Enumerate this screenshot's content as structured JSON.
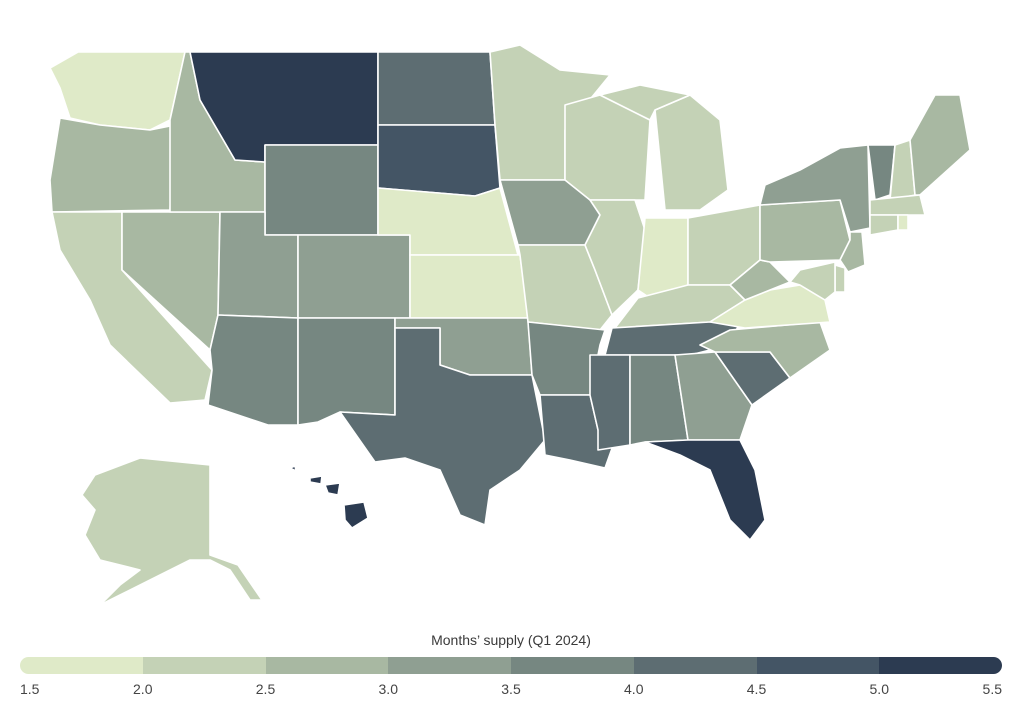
{
  "legend": {
    "title": "Months’ supply (Q1 2024)",
    "ticks": [
      "1.5",
      "2.0",
      "2.5",
      "3.0",
      "3.5",
      "4.0",
      "4.5",
      "5.0",
      "5.5"
    ],
    "colors": [
      "#dfeac8",
      "#c4d2b6",
      "#a8b8a2",
      "#8f9f92",
      "#768781",
      "#5d6d72",
      "#445565",
      "#2c3b51"
    ]
  },
  "states": [
    {
      "id": "WA",
      "bin": 0
    },
    {
      "id": "OR",
      "bin": 2
    },
    {
      "id": "CA",
      "bin": 1
    },
    {
      "id": "NV",
      "bin": 2
    },
    {
      "id": "ID",
      "bin": 2
    },
    {
      "id": "MT",
      "bin": 7
    },
    {
      "id": "WY",
      "bin": 4
    },
    {
      "id": "UT",
      "bin": 3
    },
    {
      "id": "CO",
      "bin": 3
    },
    {
      "id": "AZ",
      "bin": 4
    },
    {
      "id": "NM",
      "bin": 4
    },
    {
      "id": "ND",
      "bin": 5
    },
    {
      "id": "SD",
      "bin": 6
    },
    {
      "id": "NE",
      "bin": 0
    },
    {
      "id": "KS",
      "bin": 0
    },
    {
      "id": "OK",
      "bin": 3
    },
    {
      "id": "TX",
      "bin": 5
    },
    {
      "id": "MN",
      "bin": 1
    },
    {
      "id": "IA",
      "bin": 3
    },
    {
      "id": "MO",
      "bin": 1
    },
    {
      "id": "AR",
      "bin": 4
    },
    {
      "id": "LA",
      "bin": 5
    },
    {
      "id": "WI",
      "bin": 1
    },
    {
      "id": "IL",
      "bin": 1
    },
    {
      "id": "MI",
      "bin": 1
    },
    {
      "id": "IN",
      "bin": 0
    },
    {
      "id": "OH",
      "bin": 1
    },
    {
      "id": "KY",
      "bin": 1
    },
    {
      "id": "TN",
      "bin": 5
    },
    {
      "id": "MS",
      "bin": 5
    },
    {
      "id": "AL",
      "bin": 4
    },
    {
      "id": "GA",
      "bin": 3
    },
    {
      "id": "FL",
      "bin": 7
    },
    {
      "id": "SC",
      "bin": 5
    },
    {
      "id": "NC",
      "bin": 2
    },
    {
      "id": "VA",
      "bin": 0
    },
    {
      "id": "WV",
      "bin": 2
    },
    {
      "id": "PA",
      "bin": 2
    },
    {
      "id": "NY",
      "bin": 3
    },
    {
      "id": "VT",
      "bin": 4
    },
    {
      "id": "NH",
      "bin": 1
    },
    {
      "id": "ME",
      "bin": 2
    },
    {
      "id": "MA",
      "bin": 1
    },
    {
      "id": "CT",
      "bin": 1
    },
    {
      "id": "RI",
      "bin": 0
    },
    {
      "id": "NJ",
      "bin": 2
    },
    {
      "id": "DE",
      "bin": 1
    },
    {
      "id": "MD",
      "bin": 1
    },
    {
      "id": "AK",
      "bin": 1
    },
    {
      "id": "HI",
      "bin": 7
    }
  ]
}
